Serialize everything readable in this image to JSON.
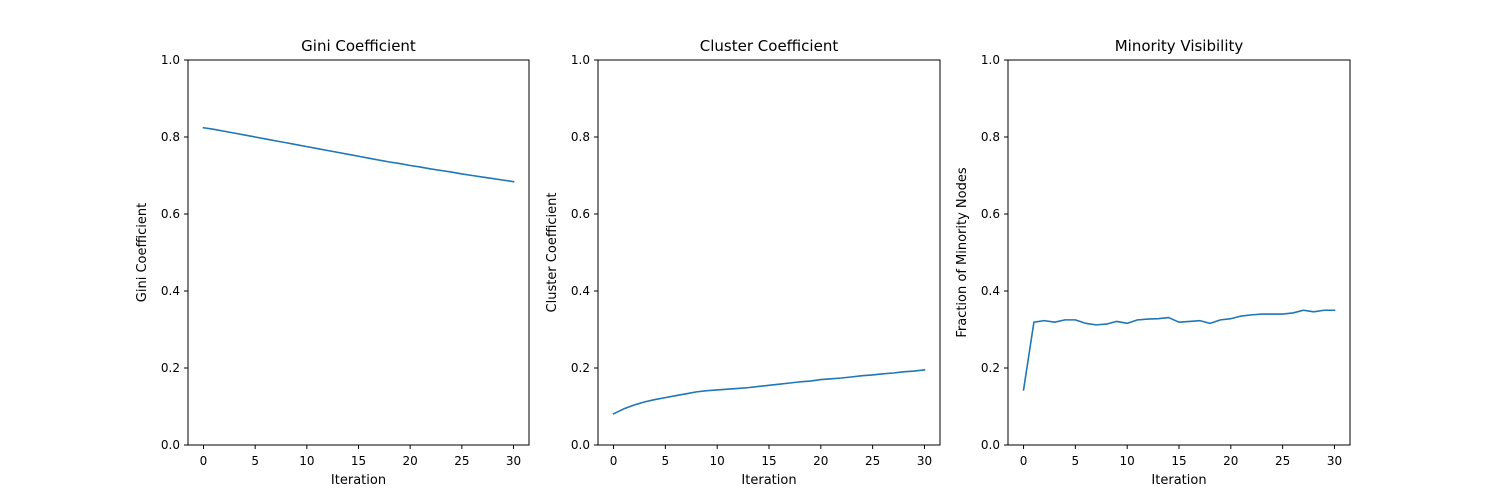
{
  "chart_data": [
    {
      "type": "line",
      "title": "Gini Coefficient",
      "xlabel": "Iteration",
      "ylabel": "Gini Coefficient",
      "xlim": [
        -1.5,
        31.5
      ],
      "ylim": [
        0,
        1
      ],
      "xticks": [
        0,
        5,
        10,
        15,
        20,
        25,
        30
      ],
      "yticks": [
        0.0,
        0.2,
        0.4,
        0.6,
        0.8,
        1.0
      ],
      "color": "#1f77b4",
      "x": [
        0,
        1,
        2,
        3,
        4,
        5,
        6,
        7,
        8,
        9,
        10,
        11,
        12,
        13,
        14,
        15,
        16,
        17,
        18,
        19,
        20,
        21,
        22,
        23,
        24,
        25,
        26,
        27,
        28,
        29,
        30
      ],
      "y": [
        0.824,
        0.82,
        0.815,
        0.81,
        0.805,
        0.8,
        0.795,
        0.79,
        0.785,
        0.78,
        0.775,
        0.77,
        0.765,
        0.76,
        0.755,
        0.75,
        0.745,
        0.74,
        0.735,
        0.731,
        0.726,
        0.722,
        0.717,
        0.713,
        0.709,
        0.704,
        0.7,
        0.696,
        0.692,
        0.688,
        0.684
      ]
    },
    {
      "type": "line",
      "title": "Cluster Coefficient",
      "xlabel": "Iteration",
      "ylabel": "Cluster Coefficient",
      "xlim": [
        -1.5,
        31.5
      ],
      "ylim": [
        0,
        1
      ],
      "xticks": [
        0,
        5,
        10,
        15,
        20,
        25,
        30
      ],
      "yticks": [
        0.0,
        0.2,
        0.4,
        0.6,
        0.8,
        1.0
      ],
      "color": "#1f77b4",
      "x": [
        0,
        1,
        2,
        3,
        4,
        5,
        6,
        7,
        8,
        9,
        10,
        11,
        12,
        13,
        14,
        15,
        16,
        17,
        18,
        19,
        20,
        21,
        22,
        23,
        24,
        25,
        26,
        27,
        28,
        29,
        30
      ],
      "y": [
        0.081,
        0.094,
        0.104,
        0.112,
        0.118,
        0.123,
        0.128,
        0.133,
        0.138,
        0.141,
        0.143,
        0.145,
        0.147,
        0.149,
        0.152,
        0.155,
        0.158,
        0.161,
        0.164,
        0.166,
        0.17,
        0.172,
        0.174,
        0.177,
        0.18,
        0.182,
        0.185,
        0.187,
        0.19,
        0.192,
        0.195
      ]
    },
    {
      "type": "line",
      "title": "Minority Visibility",
      "xlabel": "Iteration",
      "ylabel": "Fraction of Minority Nodes",
      "xlim": [
        -1.5,
        31.5
      ],
      "ylim": [
        0,
        1
      ],
      "xticks": [
        0,
        5,
        10,
        15,
        20,
        25,
        30
      ],
      "yticks": [
        0.0,
        0.2,
        0.4,
        0.6,
        0.8,
        1.0
      ],
      "color": "#1f77b4",
      "x": [
        0,
        1,
        2,
        3,
        4,
        5,
        6,
        7,
        8,
        9,
        10,
        11,
        12,
        13,
        14,
        15,
        16,
        17,
        18,
        19,
        20,
        21,
        22,
        23,
        24,
        25,
        26,
        27,
        28,
        29,
        30
      ],
      "y": [
        0.143,
        0.319,
        0.323,
        0.319,
        0.325,
        0.325,
        0.316,
        0.312,
        0.314,
        0.321,
        0.316,
        0.325,
        0.327,
        0.328,
        0.331,
        0.319,
        0.321,
        0.323,
        0.316,
        0.325,
        0.328,
        0.335,
        0.338,
        0.34,
        0.34,
        0.34,
        0.343,
        0.35,
        0.346,
        0.35,
        0.35
      ]
    }
  ]
}
